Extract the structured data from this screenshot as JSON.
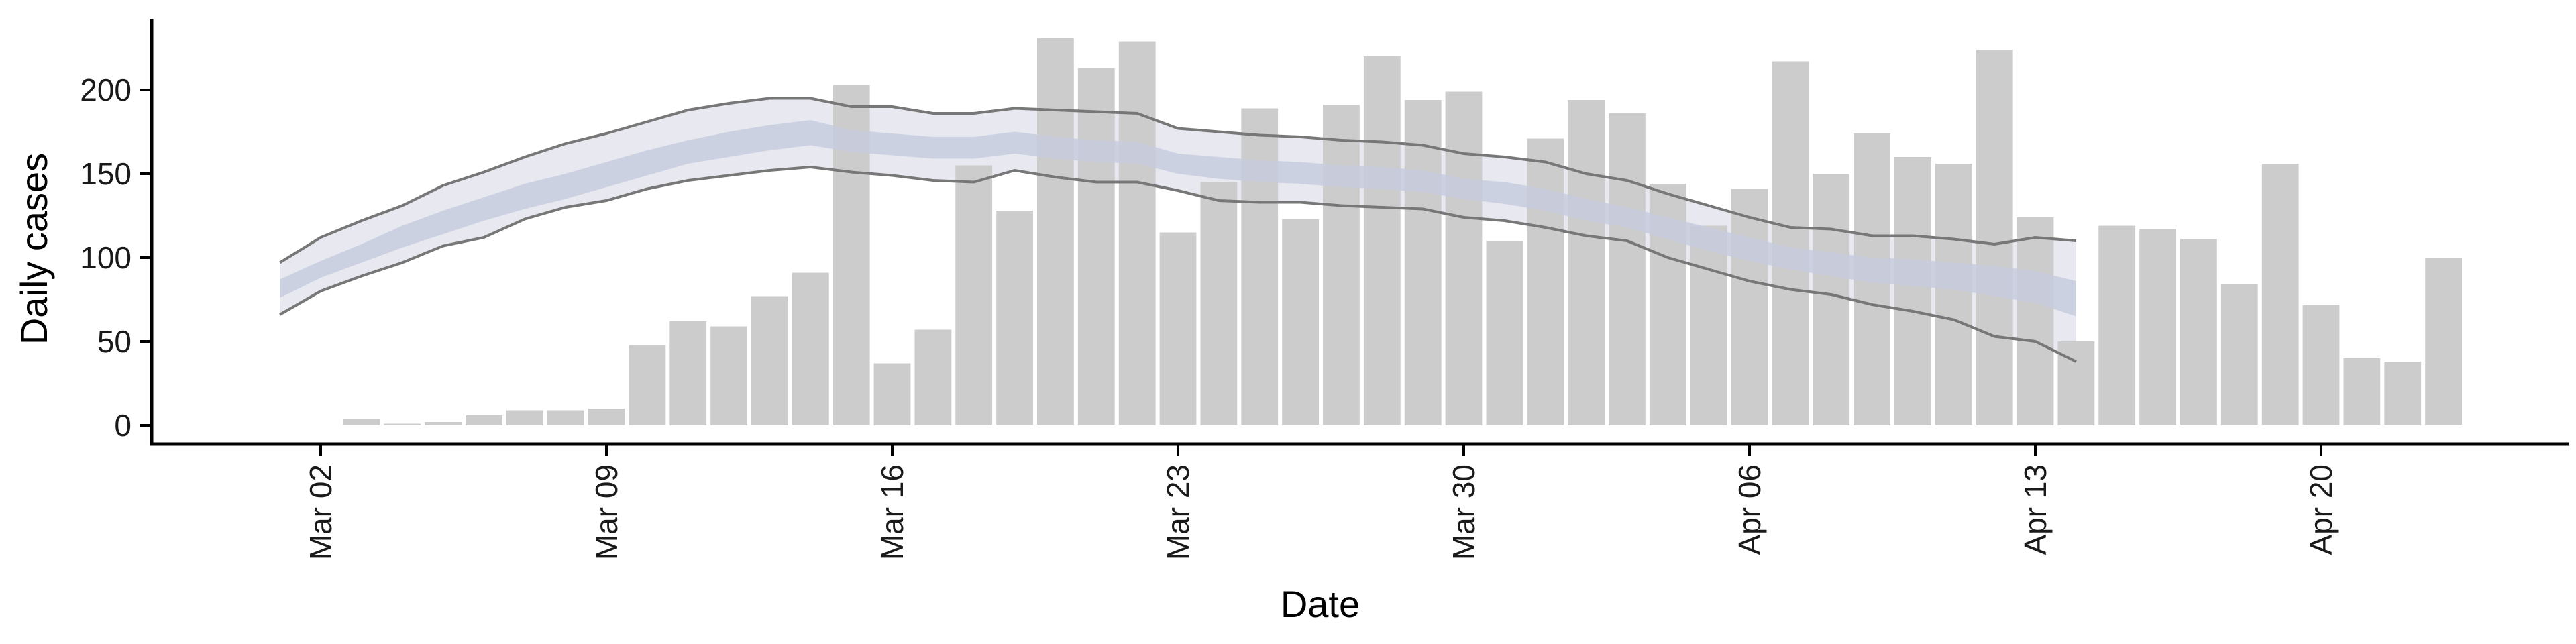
{
  "chart_data": {
    "type": "bar",
    "xlabel": "Date",
    "ylabel": "Daily cases",
    "ylim": [
      -10,
      242
    ],
    "yticks": [
      0,
      50,
      100,
      150,
      200
    ],
    "xlim": [
      "2020-02-22",
      "2020-04-27"
    ],
    "xticks": [
      {
        "date": "2020-03-02",
        "label": "Mar 02"
      },
      {
        "date": "2020-03-09",
        "label": "Mar 09"
      },
      {
        "date": "2020-03-16",
        "label": "Mar 16"
      },
      {
        "date": "2020-03-23",
        "label": "Mar 23"
      },
      {
        "date": "2020-03-30",
        "label": "Mar 30"
      },
      {
        "date": "2020-04-06",
        "label": "Apr 06"
      },
      {
        "date": "2020-04-13",
        "label": "Apr 13"
      },
      {
        "date": "2020-04-20",
        "label": "Apr 20"
      }
    ],
    "bars": {
      "color": "#cccccc",
      "start_date": "2020-03-02",
      "values": [
        0,
        4,
        1,
        2,
        6,
        9,
        9,
        10,
        48,
        62,
        59,
        77,
        91,
        203,
        37,
        57,
        155,
        128,
        231,
        213,
        229,
        115,
        145,
        189,
        123,
        191,
        220,
        194,
        199,
        110,
        171,
        194,
        186,
        144,
        119,
        141,
        217,
        150,
        174,
        160,
        156,
        224,
        124,
        50,
        119,
        117,
        111,
        84,
        156,
        72,
        40,
        38,
        100
      ]
    },
    "estimate": {
      "start_date": "2020-03-01",
      "line_color": "#777777",
      "outer_fill": "#e7e8f0",
      "inner_fill": "#c5cbdd",
      "upper": [
        97,
        112,
        122,
        131,
        143,
        151,
        160,
        168,
        174,
        181,
        188,
        192,
        195,
        195,
        190,
        190,
        186,
        186,
        189,
        188,
        187,
        186,
        177,
        175,
        173,
        172,
        170,
        169,
        167,
        162,
        160,
        157,
        150,
        146,
        138,
        131,
        124,
        118,
        117,
        113,
        113,
        111,
        108,
        112,
        110
      ],
      "lower": [
        66,
        80,
        89,
        97,
        107,
        112,
        123,
        130,
        134,
        141,
        146,
        149,
        152,
        154,
        151,
        149,
        146,
        145,
        152,
        148,
        145,
        145,
        140,
        134,
        133,
        133,
        131,
        130,
        129,
        124,
        122,
        118,
        113,
        110,
        100,
        93,
        86,
        81,
        78,
        72,
        68,
        63,
        53,
        50,
        38
      ],
      "inner_upper": [
        87,
        98,
        108,
        119,
        128,
        136,
        144,
        150,
        157,
        164,
        170,
        175,
        179,
        182,
        176,
        174,
        172,
        172,
        175,
        172,
        170,
        169,
        162,
        160,
        158,
        157,
        155,
        154,
        152,
        147,
        145,
        141,
        135,
        130,
        124,
        118,
        112,
        106,
        103,
        100,
        99,
        97,
        95,
        92,
        86
      ],
      "inner_lower": [
        76,
        88,
        97,
        106,
        114,
        122,
        129,
        135,
        142,
        149,
        156,
        160,
        164,
        167,
        163,
        161,
        159,
        159,
        162,
        159,
        157,
        156,
        150,
        147,
        145,
        144,
        142,
        141,
        139,
        135,
        132,
        128,
        122,
        118,
        111,
        104,
        98,
        93,
        89,
        85,
        83,
        81,
        77,
        73,
        65
      ]
    }
  }
}
